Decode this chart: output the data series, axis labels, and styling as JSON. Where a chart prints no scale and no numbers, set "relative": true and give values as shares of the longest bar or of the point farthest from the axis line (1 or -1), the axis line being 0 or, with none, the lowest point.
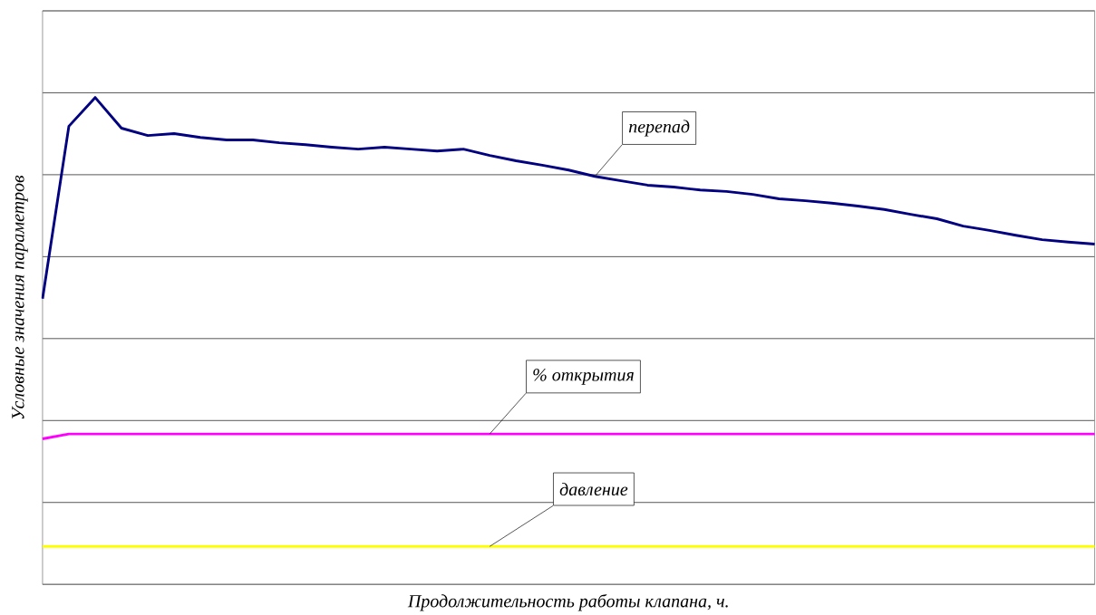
{
  "chart_data": {
    "type": "line",
    "relative": true,
    "grid": "y",
    "xlabel": "Продолжительность работы клапана, ч.",
    "ylabel": "Условные значения параметров",
    "categories": [
      null,
      null,
      null,
      null,
      null,
      null,
      null,
      null,
      null,
      null,
      null,
      null,
      null,
      null,
      null,
      null,
      null,
      null,
      null,
      null,
      null,
      null,
      null,
      null,
      null,
      null,
      null,
      null,
      null,
      null,
      null,
      null,
      null,
      null,
      null,
      null,
      null,
      null,
      null,
      null,
      null
    ],
    "series": [
      {
        "name": "перепад",
        "color": "#000080",
        "values": [
          0.587,
          0.941,
          1,
          0.937,
          0.922,
          0.926,
          0.918,
          0.913,
          0.913,
          0.907,
          0.903,
          0.898,
          0.894,
          0.898,
          0.894,
          0.89,
          0.894,
          0.881,
          0.87,
          0.861,
          0.851,
          0.838,
          0.829,
          0.82,
          0.816,
          0.81,
          0.807,
          0.801,
          0.792,
          0.788,
          0.783,
          0.777,
          0.77,
          0.76,
          0.751,
          0.736,
          0.727,
          0.717,
          0.708,
          0.703,
          0.699
        ]
      },
      {
        "name": "% открытия",
        "color": "#ff00ff",
        "values": [
          0.299,
          0.309,
          0.309,
          0.309,
          0.309,
          0.309,
          0.309,
          0.309,
          0.309,
          0.309,
          0.309,
          0.309,
          0.309,
          0.309,
          0.309,
          0.309,
          0.309,
          0.309,
          0.309,
          0.309,
          0.309,
          0.309,
          0.309,
          0.309,
          0.309,
          0.309,
          0.309,
          0.309,
          0.309,
          0.309,
          0.309,
          0.309,
          0.309,
          0.309,
          0.309,
          0.309,
          0.309,
          0.309,
          0.309,
          0.309,
          0.309
        ]
      },
      {
        "name": "давление",
        "color": "#ffff00",
        "values": [
          0.078,
          0.078,
          0.078,
          0.078,
          0.078,
          0.078,
          0.078,
          0.078,
          0.078,
          0.078,
          0.078,
          0.078,
          0.078,
          0.078,
          0.078,
          0.078,
          0.078,
          0.078,
          0.078,
          0.078,
          0.078,
          0.078,
          0.078,
          0.078,
          0.078,
          0.078,
          0.078,
          0.078,
          0.078,
          0.078,
          0.078,
          0.078,
          0.078,
          0.078,
          0.078,
          0.078,
          0.078,
          0.078,
          0.078,
          0.078,
          0.078
        ]
      }
    ]
  }
}
